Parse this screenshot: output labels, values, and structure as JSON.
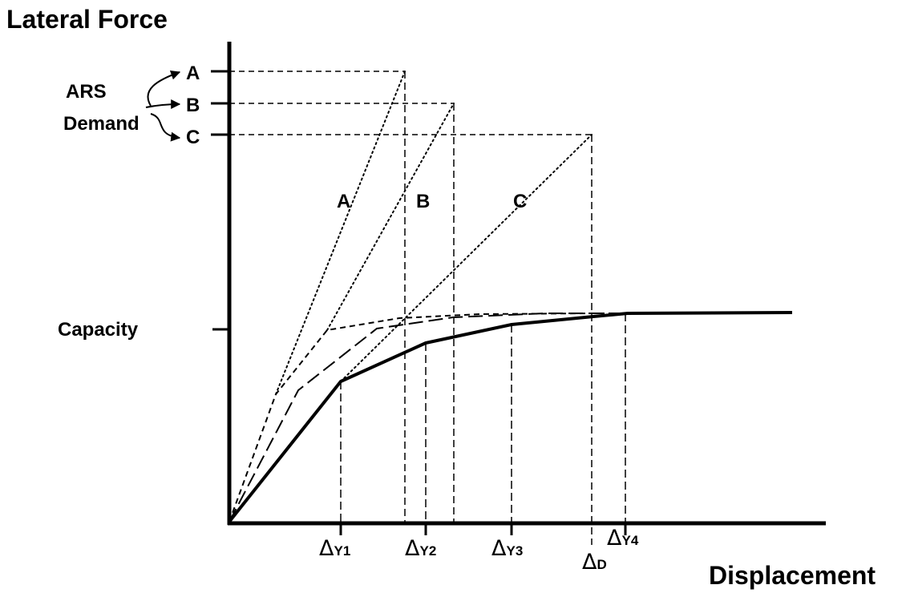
{
  "axes": {
    "y_title": "Lateral Force",
    "x_title": "Displacement",
    "capacity_label": "Capacity"
  },
  "demand": {
    "label_line1": "ARS",
    "label_line2": "Demand",
    "levels": [
      "A",
      "B",
      "C"
    ]
  },
  "line_labels": [
    "A",
    "B",
    "C"
  ],
  "x_ticks": [
    {
      "symbol": "Δ",
      "sub": "Y1"
    },
    {
      "symbol": "Δ",
      "sub": "Y2"
    },
    {
      "symbol": "Δ",
      "sub": "Y3"
    },
    {
      "symbol": "Δ",
      "sub": "D"
    },
    {
      "symbol": "Δ",
      "sub": "Y4"
    }
  ]
}
